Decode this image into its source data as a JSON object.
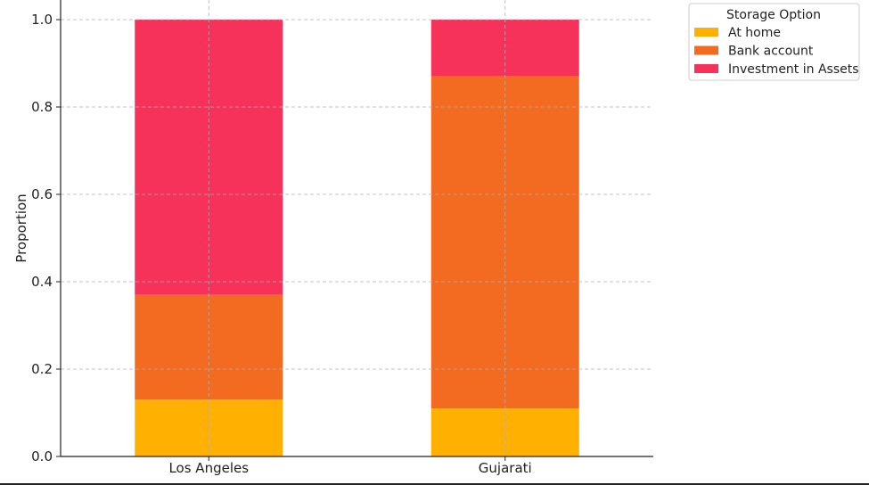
{
  "chart_data": {
    "type": "bar",
    "stacked": true,
    "categories": [
      "Los Angeles",
      "Gujarati"
    ],
    "series": [
      {
        "name": "At home",
        "values": [
          0.13,
          0.11
        ],
        "color": "#FFB000"
      },
      {
        "name": "Bank account",
        "values": [
          0.24,
          0.76
        ],
        "color": "#F26B21"
      },
      {
        "name": "Investment in Assets",
        "values": [
          0.63,
          0.13
        ],
        "color": "#F7325A"
      }
    ],
    "title": "",
    "xlabel": "",
    "ylabel": "Proportion",
    "ylim": [
      0,
      1.0
    ],
    "yticks": [
      0.0,
      0.2,
      0.4,
      0.6,
      0.8,
      1.0
    ],
    "ytick_labels": [
      "0.0",
      "0.2",
      "0.4",
      "0.6",
      "0.8",
      "1.0"
    ],
    "grid": true,
    "legend": {
      "title": "Storage Option",
      "placement": "top-right-outside"
    }
  }
}
